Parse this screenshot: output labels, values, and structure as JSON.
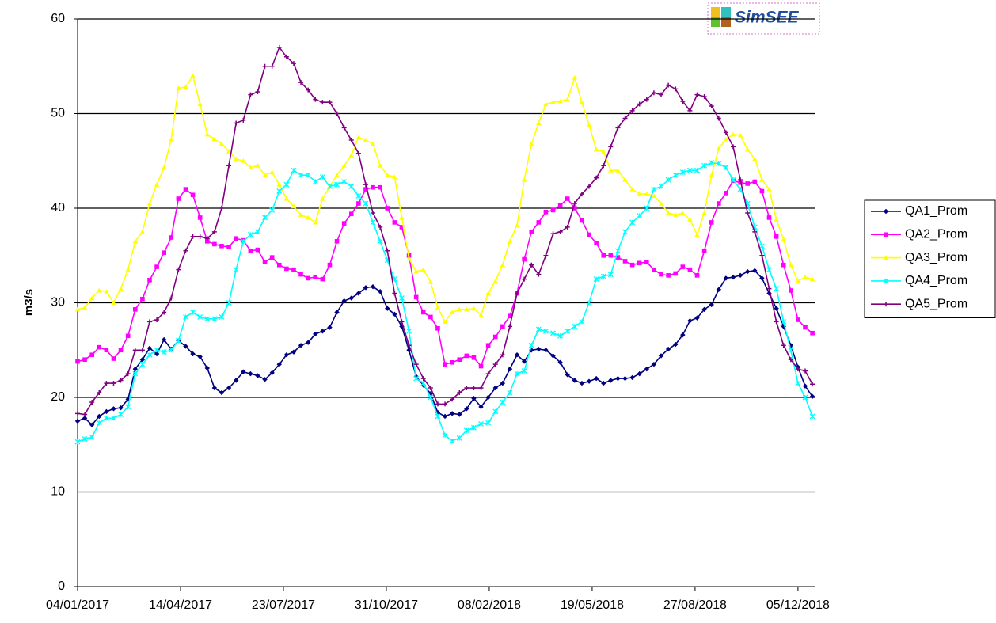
{
  "chart_data": {
    "type": "line",
    "y_label": "m3/s",
    "logo": "SimSEE",
    "legend": "right",
    "grid": true,
    "x": [
      "04/01/2017",
      "11/01/2017",
      "18/01/2017",
      "25/01/2017",
      "01/02/2017",
      "08/02/2017",
      "15/02/2017",
      "22/02/2017",
      "01/03/2017",
      "08/03/2017",
      "15/03/2017",
      "22/03/2017",
      "29/03/2017",
      "05/04/2017",
      "12/04/2017",
      "19/04/2017",
      "26/04/2017",
      "03/05/2017",
      "10/05/2017",
      "17/05/2017",
      "24/05/2017",
      "31/05/2017",
      "07/06/2017",
      "14/06/2017",
      "21/06/2017",
      "28/06/2017",
      "05/07/2017",
      "12/07/2017",
      "19/07/2017",
      "26/07/2017",
      "02/08/2017",
      "09/08/2017",
      "16/08/2017",
      "23/08/2017",
      "30/08/2017",
      "06/09/2017",
      "13/09/2017",
      "20/09/2017",
      "27/09/2017",
      "04/10/2017",
      "11/10/2017",
      "18/10/2017",
      "25/10/2017",
      "01/11/2017",
      "08/11/2017",
      "15/11/2017",
      "22/11/2017",
      "29/11/2017",
      "06/12/2017",
      "13/12/2017",
      "20/12/2017",
      "27/12/2017",
      "03/01/2018",
      "10/01/2018",
      "17/01/2018",
      "24/01/2018",
      "31/01/2018",
      "07/02/2018",
      "14/02/2018",
      "21/02/2018",
      "28/02/2018",
      "07/03/2018",
      "14/03/2018",
      "21/03/2018",
      "28/03/2018",
      "04/04/2018",
      "11/04/2018",
      "18/04/2018",
      "25/04/2018",
      "02/05/2018",
      "09/05/2018",
      "16/05/2018",
      "23/05/2018",
      "30/05/2018",
      "06/06/2018",
      "13/06/2018",
      "20/06/2018",
      "27/06/2018",
      "04/07/2018",
      "11/07/2018",
      "18/07/2018",
      "25/07/2018",
      "01/08/2018",
      "08/08/2018",
      "15/08/2018",
      "22/08/2018",
      "29/08/2018",
      "05/09/2018",
      "12/09/2018",
      "19/09/2018",
      "26/09/2018",
      "03/10/2018",
      "10/10/2018",
      "17/10/2018",
      "24/10/2018",
      "31/10/2018",
      "07/11/2018",
      "14/11/2018",
      "21/11/2018",
      "28/11/2018",
      "05/12/2018",
      "12/12/2018",
      "19/12/2018"
    ],
    "series": [
      {
        "name": "QA1_Prom",
        "color": "#000080",
        "marker": "diamond",
        "values": [
          17.5,
          17.8,
          17.1,
          18.0,
          18.5,
          18.8,
          18.9,
          19.8,
          23.0,
          24.0,
          25.2,
          24.6,
          26.1,
          25.1,
          26.0,
          25.4,
          24.6,
          24.3,
          23.1,
          21.0,
          20.5,
          21.0,
          21.8,
          22.7,
          22.5,
          22.3,
          21.9,
          22.6,
          23.5,
          24.5,
          24.8,
          25.5,
          25.8,
          26.7,
          27.0,
          27.4,
          29.0,
          30.2,
          30.5,
          31.0,
          31.6,
          31.7,
          31.2,
          29.4,
          28.8,
          27.5,
          25.0,
          22.2,
          21.3,
          20.4,
          18.4,
          18.0,
          18.3,
          18.2,
          18.8,
          19.9,
          19.0,
          20.0,
          21.0,
          21.5,
          23.0,
          24.5,
          23.8,
          25.0,
          25.1,
          25.0,
          24.4,
          23.7,
          22.4,
          21.8,
          21.5,
          21.7,
          22.0,
          21.5,
          21.8,
          22.0,
          22.0,
          22.1,
          22.5,
          23.0,
          23.5,
          24.4,
          25.1,
          25.6,
          26.6,
          28.1,
          28.4,
          29.3,
          29.8,
          31.4,
          32.6,
          32.7,
          32.9,
          33.3,
          33.4,
          32.6,
          31.0,
          29.4,
          27.5,
          25.5,
          23.2,
          21.2,
          20.1
        ]
      },
      {
        "name": "QA2_Prom",
        "color": "#ff00ff",
        "marker": "square",
        "values": [
          23.8,
          24.0,
          24.5,
          25.3,
          25.0,
          24.1,
          25.0,
          26.5,
          29.3,
          30.4,
          32.4,
          33.8,
          35.3,
          36.9,
          41.0,
          42.0,
          41.4,
          39.0,
          36.5,
          36.2,
          36.0,
          35.9,
          36.8,
          36.6,
          35.5,
          35.6,
          34.3,
          34.8,
          34.0,
          33.6,
          33.5,
          33.0,
          32.6,
          32.7,
          32.5,
          34.0,
          36.5,
          38.4,
          39.4,
          40.5,
          42.0,
          42.2,
          42.2,
          40.0,
          38.5,
          38.0,
          35.0,
          30.6,
          29.0,
          28.5,
          27.3,
          23.5,
          23.7,
          24.0,
          24.4,
          24.2,
          23.3,
          25.5,
          26.4,
          27.5,
          28.6,
          31.0,
          34.6,
          37.5,
          38.5,
          39.6,
          39.8,
          40.3,
          41.0,
          40.0,
          38.7,
          37.2,
          36.3,
          35.0,
          35.0,
          34.8,
          34.4,
          34.0,
          34.2,
          34.3,
          33.5,
          33.0,
          32.9,
          33.1,
          33.8,
          33.5,
          32.9,
          35.5,
          38.5,
          40.5,
          41.6,
          42.9,
          42.7,
          42.6,
          42.8,
          41.8,
          39.0,
          37.0,
          34.0,
          31.3,
          28.2,
          27.4,
          26.8
        ]
      },
      {
        "name": "QA3_Prom",
        "color": "#ffff00",
        "marker": "triangle",
        "values": [
          29.3,
          29.5,
          30.5,
          31.3,
          31.2,
          30.0,
          31.5,
          33.5,
          36.5,
          37.5,
          40.5,
          42.5,
          44.3,
          47.3,
          52.7,
          52.8,
          54.0,
          51.0,
          47.8,
          47.3,
          46.8,
          46.0,
          45.2,
          45.0,
          44.3,
          44.5,
          43.5,
          43.8,
          42.5,
          41.0,
          40.2,
          39.3,
          39.0,
          38.5,
          41.0,
          42.3,
          43.5,
          44.5,
          45.6,
          47.5,
          47.2,
          46.8,
          44.5,
          43.5,
          43.3,
          39.0,
          34.7,
          33.3,
          33.5,
          32.2,
          29.5,
          28.0,
          29.0,
          29.3,
          29.3,
          29.4,
          28.7,
          31.0,
          32.3,
          34.0,
          36.5,
          38.2,
          43.0,
          46.8,
          49.0,
          51.0,
          51.2,
          51.3,
          51.5,
          53.8,
          51.2,
          48.8,
          46.2,
          46.0,
          44.0,
          44.0,
          43.0,
          42.0,
          41.5,
          41.5,
          41.3,
          40.5,
          39.5,
          39.3,
          39.5,
          38.8,
          37.2,
          39.5,
          43.5,
          46.3,
          47.3,
          47.8,
          47.7,
          46.2,
          45.2,
          43.0,
          42.0,
          38.8,
          36.7,
          34.0,
          32.3,
          32.7,
          32.5
        ]
      },
      {
        "name": "QA4_Prom",
        "color": "#00ffff",
        "marker": "star",
        "values": [
          15.3,
          15.6,
          15.8,
          17.3,
          17.8,
          17.8,
          18.2,
          19.0,
          22.5,
          23.5,
          24.5,
          25.0,
          24.8,
          25.0,
          26.0,
          28.5,
          29.0,
          28.5,
          28.3,
          28.3,
          28.5,
          30.0,
          33.5,
          36.5,
          37.2,
          37.5,
          39.0,
          39.8,
          41.8,
          42.5,
          44.0,
          43.5,
          43.5,
          42.8,
          43.3,
          42.3,
          42.5,
          42.8,
          42.3,
          41.3,
          40.5,
          38.5,
          36.5,
          34.5,
          32.5,
          30.5,
          27.0,
          22.0,
          21.5,
          20.0,
          18.0,
          16.0,
          15.4,
          15.7,
          16.5,
          16.8,
          17.2,
          17.3,
          18.5,
          19.5,
          20.5,
          22.5,
          22.8,
          25.5,
          27.2,
          27.0,
          26.8,
          26.5,
          27.0,
          27.5,
          28.0,
          30.0,
          32.5,
          32.8,
          33.0,
          35.5,
          37.5,
          38.5,
          39.2,
          40.0,
          42.0,
          42.3,
          43.0,
          43.5,
          43.8,
          44.0,
          44.0,
          44.5,
          44.8,
          44.7,
          44.3,
          43.0,
          42.0,
          40.5,
          38.0,
          36.0,
          33.5,
          31.5,
          28.0,
          25.0,
          21.5,
          20.0,
          18.0
        ]
      },
      {
        "name": "QA5_Prom",
        "color": "#800080",
        "marker": "plus",
        "values": [
          18.3,
          18.2,
          19.5,
          20.5,
          21.5,
          21.5,
          21.8,
          22.5,
          25.0,
          25.0,
          28.0,
          28.2,
          29.0,
          30.5,
          33.5,
          35.5,
          37.0,
          37.0,
          36.8,
          37.5,
          40.0,
          44.5,
          49.0,
          49.3,
          52.0,
          52.3,
          55.0,
          55.0,
          57.0,
          56.0,
          55.3,
          53.3,
          52.5,
          51.5,
          51.2,
          51.2,
          50.0,
          48.5,
          47.2,
          45.8,
          42.5,
          39.5,
          38.0,
          35.5,
          31.0,
          28.0,
          25.5,
          23.5,
          22.0,
          21.0,
          19.3,
          19.3,
          19.8,
          20.5,
          21.0,
          21.0,
          21.0,
          22.5,
          23.5,
          24.5,
          27.5,
          31.0,
          32.5,
          34.0,
          33.0,
          35.0,
          37.3,
          37.5,
          38.0,
          40.5,
          41.5,
          42.3,
          43.2,
          44.5,
          46.5,
          48.5,
          49.5,
          50.3,
          51.0,
          51.5,
          52.2,
          52.0,
          53.0,
          52.6,
          51.3,
          50.3,
          52.0,
          51.8,
          50.8,
          49.5,
          48.0,
          46.5,
          43.0,
          39.5,
          37.5,
          35.0,
          31.5,
          28.0,
          25.5,
          24.0,
          23.0,
          22.8,
          21.4
        ]
      }
    ],
    "xlim": [
      "04/01/2017",
      "22/12/2018"
    ],
    "xticks": [
      "04/01/2017",
      "14/04/2017",
      "23/07/2017",
      "31/10/2017",
      "08/02/2018",
      "19/05/2018",
      "27/08/2018",
      "05/12/2018"
    ],
    "ylim": [
      0,
      60
    ],
    "yticks": [
      0,
      10,
      20,
      30,
      40,
      50,
      60
    ]
  }
}
